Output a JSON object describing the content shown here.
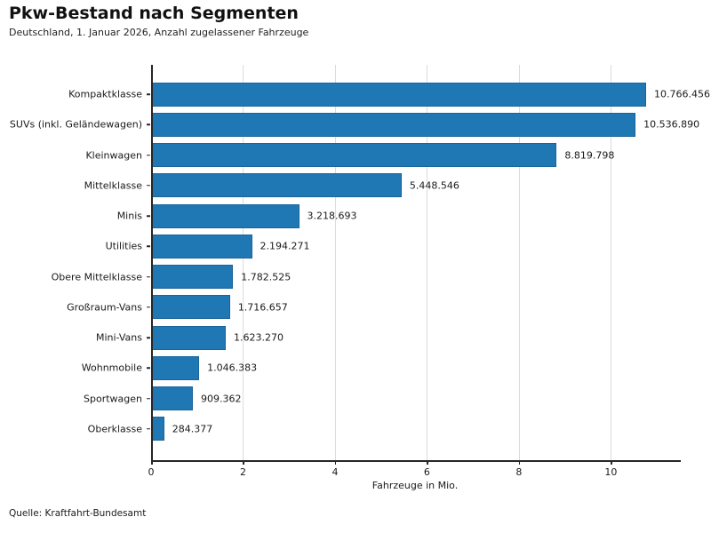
{
  "header": {
    "title": "Pkw-Bestand nach Segmenten",
    "subtitle": "Deutschland, 1. Januar 2026, Anzahl zugelassener Fahrzeuge"
  },
  "footer": {
    "source": "Quelle: Kraftfahrt-Bundesamt"
  },
  "chart_data": {
    "type": "bar",
    "orientation": "horizontal",
    "title": "Pkw-Bestand nach Segmenten",
    "subtitle": "Deutschland, 1. Januar 2026, Anzahl zugelassener Fahrzeuge",
    "xlabel": "Fahrzeuge in Mio.",
    "ylabel": "",
    "xlim": [
      0,
      11.5
    ],
    "xticks": [
      0,
      2,
      4,
      6,
      8,
      10
    ],
    "grid": "vertical",
    "legend": "none",
    "bar_color": "#1f77b4",
    "grid_color": "#dcdcdc",
    "categories": [
      "Kompaktklasse",
      "SUVs (inkl. Geländewagen)",
      "Kleinwagen",
      "Mittelklasse",
      "Minis",
      "Utilities",
      "Obere Mittelklasse",
      "Großraum-Vans",
      "Mini-Vans",
      "Wohnmobile",
      "Sportwagen",
      "Oberklasse"
    ],
    "values": [
      10766456,
      10536890,
      8819798,
      5448546,
      3218693,
      2194271,
      1782525,
      1716657,
      1623270,
      1046383,
      909362,
      284377
    ],
    "value_labels": [
      "10.766.456",
      "10.536.890",
      "8.819.798",
      "5.448.546",
      "3.218.693",
      "2.194.271",
      "1.782.525",
      "1.716.657",
      "1.623.270",
      "1.046.383",
      "909.362",
      "284.377"
    ],
    "source": "Quelle: Kraftfahrt-Bundesamt"
  }
}
